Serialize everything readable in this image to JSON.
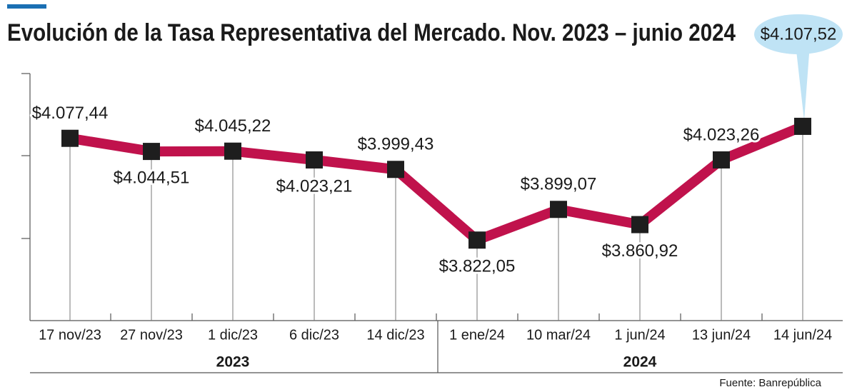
{
  "chart_data": {
    "type": "line",
    "title": "Evolución de la Tasa Representativa del Mercado. Nov. 2023 – junio 2024",
    "categories": [
      "17 nov/23",
      "27 nov/23",
      "1 dic/23",
      "6 dic/23",
      "14 dic/23",
      "1 ene/24",
      "10 mar/24",
      "1 jun/24",
      "13 jun/24",
      "14 jun/24"
    ],
    "values": [
      4077.44,
      4044.51,
      4045.22,
      4023.21,
      3999.43,
      3822.05,
      3899.07,
      3860.92,
      4023.26,
      4107.52
    ],
    "value_labels": [
      "$4.077,44",
      "$4.044,51",
      "$4.045,22",
      "$4.023,21",
      "$3.999,43",
      "$3.822,05",
      "$3.899,07",
      "$3.860,92",
      "$4.023,26",
      "$4.107,52"
    ],
    "color": "#c0124c",
    "marker_color": "#1e1e1e",
    "ylim": [
      3620,
      4240
    ],
    "groups": [
      "2023",
      "2024"
    ],
    "source": "Fuente: Banrepública"
  }
}
